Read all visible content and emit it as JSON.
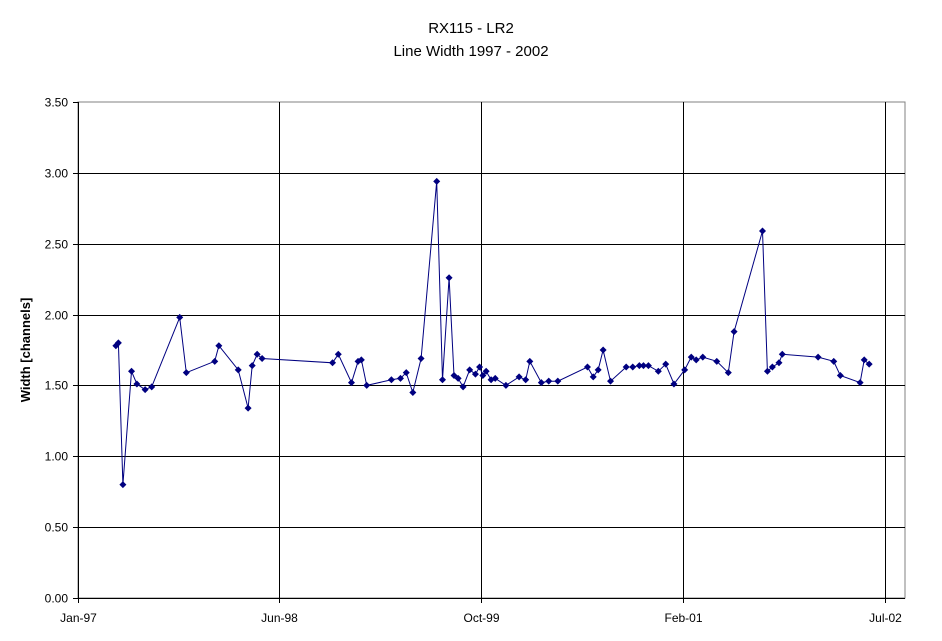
{
  "chart_data": {
    "type": "scatter",
    "title": "RX115 - LR2",
    "subtitle": "Line Width 1997 - 2002",
    "xlabel": "",
    "ylabel": "Width [channels]",
    "x_tick_labels": [
      "Jan-97",
      "Jun-98",
      "Oct-99",
      "Feb-01",
      "Jul-02"
    ],
    "y_tick_labels": [
      "0.00",
      "0.50",
      "1.00",
      "1.50",
      "2.00",
      "2.50",
      "3.00",
      "3.50"
    ],
    "xlim": [
      "1997-01-01",
      "1997-01-01+2008d"
    ],
    "ylim": [
      0,
      3.5
    ],
    "grid": true,
    "series_color": "#000080",
    "series": [
      {
        "values": [
          [
            "1997-04-03",
            1.78
          ],
          [
            "1997-04-09",
            1.8
          ],
          [
            "1997-04-20",
            0.8
          ],
          [
            "1997-05-11",
            1.6
          ],
          [
            "1997-05-24",
            1.51
          ],
          [
            "1997-06-13",
            1.47
          ],
          [
            "1997-06-29",
            1.49
          ],
          [
            "1997-09-05",
            1.98
          ],
          [
            "1997-09-21",
            1.59
          ],
          [
            "1997-11-29",
            1.67
          ],
          [
            "1997-12-09",
            1.78
          ],
          [
            "1998-01-25",
            1.61
          ],
          [
            "1998-02-18",
            1.34
          ],
          [
            "1998-02-28",
            1.64
          ],
          [
            "1998-03-12",
            1.72
          ],
          [
            "1998-03-24",
            1.69
          ],
          [
            "1998-09-11",
            1.66
          ],
          [
            "1998-09-25",
            1.72
          ],
          [
            "1998-10-27",
            1.52
          ],
          [
            "1998-11-12",
            1.67
          ],
          [
            "1998-11-20",
            1.68
          ],
          [
            "1998-12-03",
            1.5
          ],
          [
            "1999-02-01",
            1.54
          ],
          [
            "1999-02-23",
            1.55
          ],
          [
            "1999-03-09",
            1.59
          ],
          [
            "1999-03-25",
            1.45
          ],
          [
            "1999-04-14",
            1.69
          ],
          [
            "1999-05-22",
            2.94
          ],
          [
            "1999-06-05",
            1.54
          ],
          [
            "1999-06-21",
            2.26
          ],
          [
            "1999-07-03",
            1.57
          ],
          [
            "1999-07-13",
            1.55
          ],
          [
            "1999-07-25",
            1.49
          ],
          [
            "1999-08-10",
            1.61
          ],
          [
            "1999-08-24",
            1.58
          ],
          [
            "1999-09-03",
            1.63
          ],
          [
            "1999-09-11",
            1.57
          ],
          [
            "1999-09-19",
            1.6
          ],
          [
            "1999-10-01",
            1.54
          ],
          [
            "1999-10-11",
            1.55
          ],
          [
            "1999-11-06",
            1.5
          ],
          [
            "1999-12-08",
            1.56
          ],
          [
            "1999-12-24",
            1.54
          ],
          [
            "2000-01-03",
            1.67
          ],
          [
            "2000-01-31",
            1.52
          ],
          [
            "2000-02-18",
            1.53
          ],
          [
            "2000-03-11",
            1.53
          ],
          [
            "2000-05-22",
            1.63
          ],
          [
            "2000-06-05",
            1.56
          ],
          [
            "2000-06-17",
            1.61
          ],
          [
            "2000-06-29",
            1.75
          ],
          [
            "2000-07-17",
            1.53
          ],
          [
            "2000-08-24",
            1.63
          ],
          [
            "2000-09-09",
            1.63
          ],
          [
            "2000-09-25",
            1.64
          ],
          [
            "2000-10-05",
            1.64
          ],
          [
            "2000-10-17",
            1.64
          ],
          [
            "2000-11-10",
            1.6
          ],
          [
            "2000-11-28",
            1.65
          ],
          [
            "2000-12-18",
            1.51
          ],
          [
            "2001-01-13",
            1.61
          ],
          [
            "2001-01-29",
            1.7
          ],
          [
            "2001-02-10",
            1.68
          ],
          [
            "2001-02-26",
            1.7
          ],
          [
            "2001-04-01",
            1.67
          ],
          [
            "2001-04-29",
            1.59
          ],
          [
            "2001-05-13",
            1.88
          ],
          [
            "2001-07-21",
            2.59
          ],
          [
            "2001-08-02",
            1.6
          ],
          [
            "2001-08-14",
            1.63
          ],
          [
            "2001-08-30",
            1.66
          ],
          [
            "2001-09-07",
            1.72
          ],
          [
            "2001-12-03",
            1.7
          ],
          [
            "2002-01-10",
            1.67
          ],
          [
            "2002-01-26",
            1.57
          ],
          [
            "2002-03-15",
            1.52
          ],
          [
            "2002-03-25",
            1.68
          ],
          [
            "2002-04-06",
            1.65
          ]
        ]
      }
    ]
  }
}
